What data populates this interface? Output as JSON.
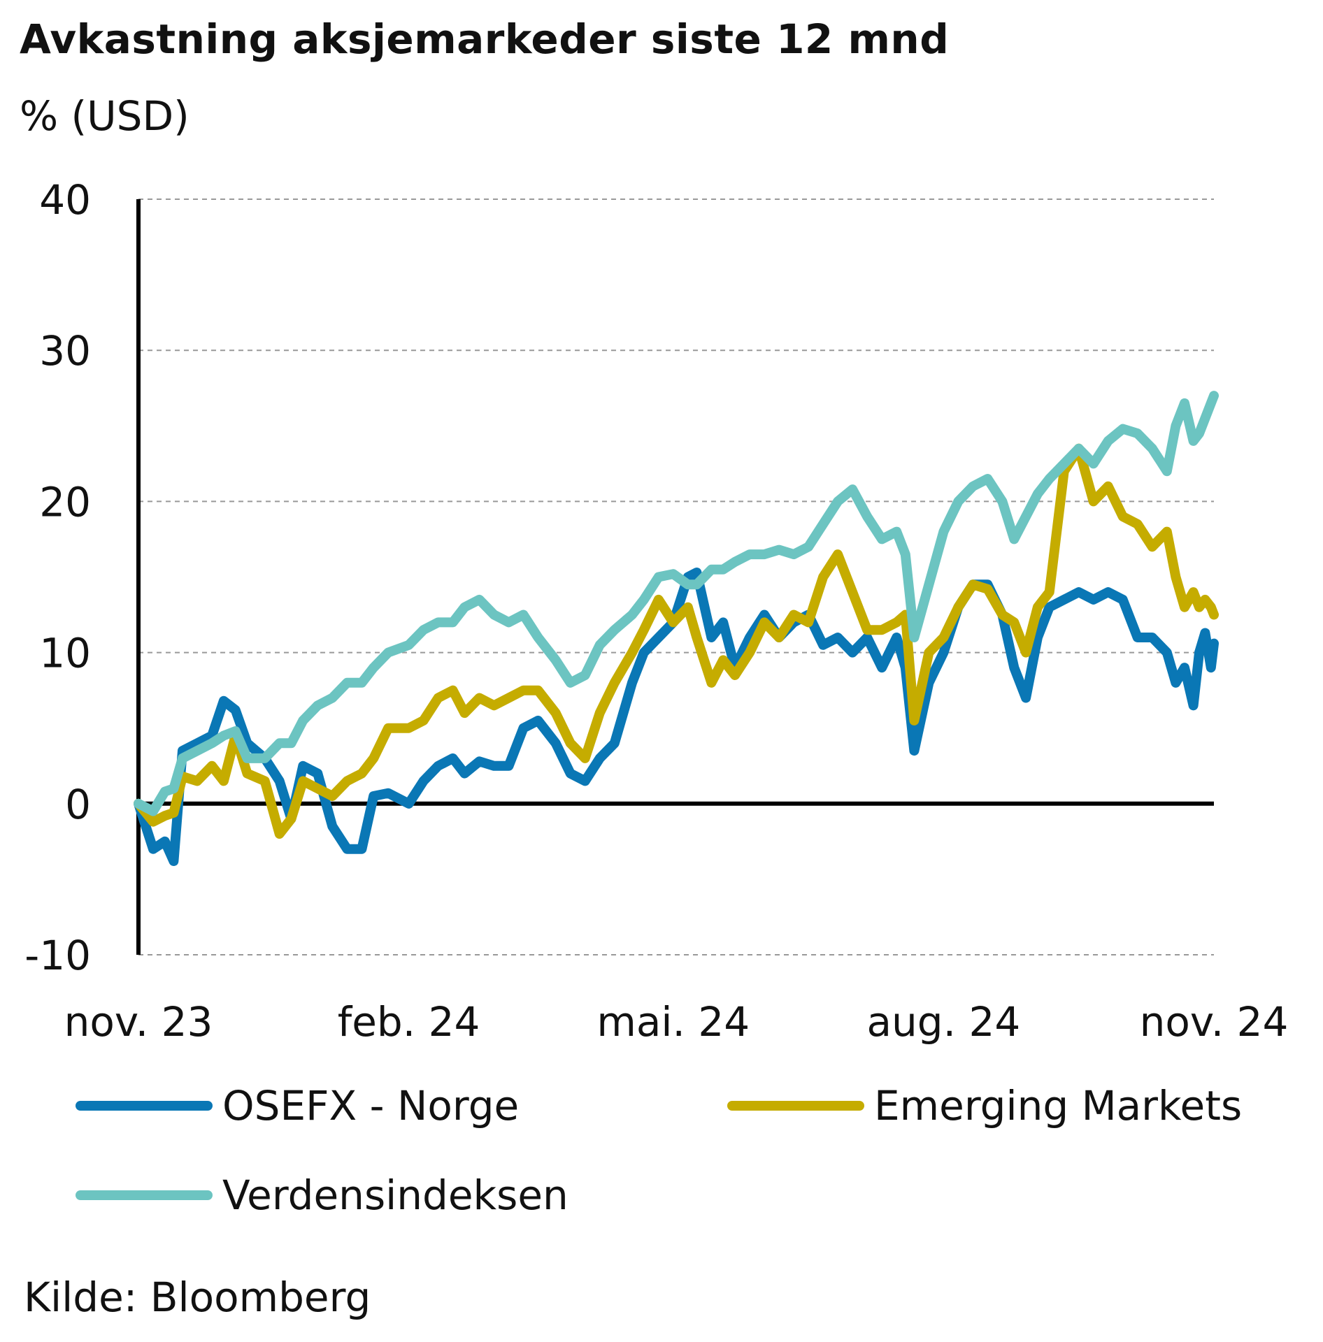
{
  "title": "Avkastning aksjemarkeder siste 12 mnd",
  "unit": "% (USD)",
  "source": "Kilde: Bloomberg",
  "colors": {
    "OSEFX": "#0a77b5",
    "EM": "#c5ac00",
    "World": "#6cc4c1",
    "axis": "#000000",
    "grid": "#999999"
  },
  "chart_data": {
    "type": "line",
    "title": "Avkastning aksjemarkeder siste 12 mnd",
    "ylabel": "% (USD)",
    "xlabel": "",
    "ylim": [
      -10,
      40
    ],
    "yticks": [
      40,
      30,
      20,
      10,
      0,
      -10
    ],
    "xlim": [
      "2023-11-15",
      "2024-11-15"
    ],
    "xticks": [
      {
        "date": "2023-11-15",
        "label": "nov. 23"
      },
      {
        "date": "2024-02-15",
        "label": "feb. 24"
      },
      {
        "date": "2024-05-15",
        "label": "mai. 24"
      },
      {
        "date": "2024-08-15",
        "label": "aug. 24"
      },
      {
        "date": "2024-11-15",
        "label": "nov. 24"
      }
    ],
    "grid": "horizontal dashed",
    "legend": "bottom",
    "series": [
      {
        "name": "OSEFX - Norge",
        "color": "#0a77b5",
        "points": [
          [
            "2023-11-15",
            0
          ],
          [
            "2023-11-20",
            -3
          ],
          [
            "2023-11-24",
            -2.5
          ],
          [
            "2023-11-27",
            -3.8
          ],
          [
            "2023-11-30",
            3.5
          ],
          [
            "2023-12-05",
            4
          ],
          [
            "2023-12-10",
            4.5
          ],
          [
            "2023-12-14",
            6.8
          ],
          [
            "2023-12-18",
            6.2
          ],
          [
            "2023-12-22",
            4
          ],
          [
            "2023-12-28",
            3
          ],
          [
            "2024-01-02",
            1.5
          ],
          [
            "2024-01-06",
            -1
          ],
          [
            "2024-01-10",
            2.5
          ],
          [
            "2024-01-15",
            2
          ],
          [
            "2024-01-20",
            -1.5
          ],
          [
            "2024-01-25",
            -3
          ],
          [
            "2024-01-30",
            -3
          ],
          [
            "2024-02-03",
            0.5
          ],
          [
            "2024-02-08",
            0.7
          ],
          [
            "2024-02-15",
            0
          ],
          [
            "2024-02-20",
            1.5
          ],
          [
            "2024-02-25",
            2.5
          ],
          [
            "2024-03-01",
            3
          ],
          [
            "2024-03-05",
            2
          ],
          [
            "2024-03-10",
            2.8
          ],
          [
            "2024-03-15",
            2.5
          ],
          [
            "2024-03-20",
            2.5
          ],
          [
            "2024-03-25",
            5
          ],
          [
            "2024-03-30",
            5.5
          ],
          [
            "2024-04-05",
            4
          ],
          [
            "2024-04-10",
            2
          ],
          [
            "2024-04-15",
            1.5
          ],
          [
            "2024-04-20",
            3
          ],
          [
            "2024-04-25",
            4
          ],
          [
            "2024-05-01",
            8
          ],
          [
            "2024-05-05",
            10
          ],
          [
            "2024-05-10",
            11
          ],
          [
            "2024-05-15",
            12
          ],
          [
            "2024-05-20",
            15
          ],
          [
            "2024-05-23",
            15.3
          ],
          [
            "2024-05-28",
            11
          ],
          [
            "2024-06-01",
            12
          ],
          [
            "2024-06-05",
            9
          ],
          [
            "2024-06-10",
            11
          ],
          [
            "2024-06-15",
            12.5
          ],
          [
            "2024-06-20",
            11
          ],
          [
            "2024-06-25",
            12
          ],
          [
            "2024-06-30",
            12.5
          ],
          [
            "2024-07-05",
            10.5
          ],
          [
            "2024-07-10",
            11
          ],
          [
            "2024-07-15",
            10
          ],
          [
            "2024-07-20",
            11
          ],
          [
            "2024-07-25",
            9
          ],
          [
            "2024-07-30",
            11
          ],
          [
            "2024-08-02",
            9
          ],
          [
            "2024-08-05",
            3.5
          ],
          [
            "2024-08-10",
            8
          ],
          [
            "2024-08-15",
            10
          ],
          [
            "2024-08-20",
            13
          ],
          [
            "2024-08-25",
            14.5
          ],
          [
            "2024-08-30",
            14.5
          ],
          [
            "2024-09-04",
            12.5
          ],
          [
            "2024-09-08",
            9
          ],
          [
            "2024-09-12",
            7
          ],
          [
            "2024-09-16",
            11
          ],
          [
            "2024-09-20",
            13
          ],
          [
            "2024-09-25",
            13.5
          ],
          [
            "2024-09-30",
            14
          ],
          [
            "2024-10-05",
            13.5
          ],
          [
            "2024-10-10",
            14
          ],
          [
            "2024-10-15",
            13.5
          ],
          [
            "2024-10-20",
            11
          ],
          [
            "2024-10-25",
            11
          ],
          [
            "2024-10-30",
            10
          ],
          [
            "2024-11-02",
            8
          ],
          [
            "2024-11-05",
            9
          ],
          [
            "2024-11-08",
            6.5
          ],
          [
            "2024-11-10",
            10
          ],
          [
            "2024-11-12",
            11.3
          ],
          [
            "2024-11-14",
            9
          ],
          [
            "2024-11-15",
            10.6
          ]
        ]
      },
      {
        "name": "Emerging Markets",
        "color": "#c5ac00",
        "points": [
          [
            "2023-11-15",
            0
          ],
          [
            "2023-11-20",
            -1.2
          ],
          [
            "2023-11-24",
            -0.8
          ],
          [
            "2023-11-27",
            -0.6
          ],
          [
            "2023-11-30",
            1.8
          ],
          [
            "2023-12-05",
            1.5
          ],
          [
            "2023-12-10",
            2.5
          ],
          [
            "2023-12-14",
            1.5
          ],
          [
            "2023-12-18",
            4.5
          ],
          [
            "2023-12-22",
            2
          ],
          [
            "2023-12-28",
            1.5
          ],
          [
            "2024-01-02",
            -2
          ],
          [
            "2024-01-06",
            -1
          ],
          [
            "2024-01-10",
            1.5
          ],
          [
            "2024-01-15",
            1
          ],
          [
            "2024-01-20",
            0.5
          ],
          [
            "2024-01-25",
            1.5
          ],
          [
            "2024-01-30",
            2
          ],
          [
            "2024-02-03",
            3
          ],
          [
            "2024-02-08",
            5
          ],
          [
            "2024-02-15",
            5
          ],
          [
            "2024-02-20",
            5.5
          ],
          [
            "2024-02-25",
            7
          ],
          [
            "2024-03-01",
            7.5
          ],
          [
            "2024-03-05",
            6
          ],
          [
            "2024-03-10",
            7
          ],
          [
            "2024-03-15",
            6.5
          ],
          [
            "2024-03-20",
            7
          ],
          [
            "2024-03-25",
            7.5
          ],
          [
            "2024-03-30",
            7.5
          ],
          [
            "2024-04-05",
            6
          ],
          [
            "2024-04-10",
            4
          ],
          [
            "2024-04-15",
            3
          ],
          [
            "2024-04-20",
            6
          ],
          [
            "2024-04-25",
            8
          ],
          [
            "2024-05-01",
            10
          ],
          [
            "2024-05-05",
            11.5
          ],
          [
            "2024-05-10",
            13.5
          ],
          [
            "2024-05-15",
            12
          ],
          [
            "2024-05-20",
            13
          ],
          [
            "2024-05-23",
            11
          ],
          [
            "2024-05-28",
            8
          ],
          [
            "2024-06-01",
            9.5
          ],
          [
            "2024-06-05",
            8.5
          ],
          [
            "2024-06-10",
            10
          ],
          [
            "2024-06-15",
            12
          ],
          [
            "2024-06-20",
            11
          ],
          [
            "2024-06-25",
            12.5
          ],
          [
            "2024-06-30",
            12
          ],
          [
            "2024-07-05",
            15
          ],
          [
            "2024-07-10",
            16.5
          ],
          [
            "2024-07-15",
            14
          ],
          [
            "2024-07-20",
            11.5
          ],
          [
            "2024-07-25",
            11.5
          ],
          [
            "2024-07-30",
            12
          ],
          [
            "2024-08-02",
            12.5
          ],
          [
            "2024-08-05",
            5.5
          ],
          [
            "2024-08-10",
            10
          ],
          [
            "2024-08-15",
            11
          ],
          [
            "2024-08-20",
            13
          ],
          [
            "2024-08-25",
            14.5
          ],
          [
            "2024-08-30",
            14.2
          ],
          [
            "2024-09-04",
            12.5
          ],
          [
            "2024-09-08",
            12
          ],
          [
            "2024-09-12",
            10
          ],
          [
            "2024-09-16",
            13
          ],
          [
            "2024-09-20",
            14
          ],
          [
            "2024-09-25",
            22
          ],
          [
            "2024-09-30",
            23.5
          ],
          [
            "2024-10-05",
            20
          ],
          [
            "2024-10-10",
            21
          ],
          [
            "2024-10-15",
            19
          ],
          [
            "2024-10-20",
            18.5
          ],
          [
            "2024-10-25",
            17
          ],
          [
            "2024-10-30",
            18
          ],
          [
            "2024-11-02",
            15
          ],
          [
            "2024-11-05",
            13
          ],
          [
            "2024-11-08",
            14
          ],
          [
            "2024-11-10",
            13
          ],
          [
            "2024-11-12",
            13.5
          ],
          [
            "2024-11-14",
            13
          ],
          [
            "2024-11-15",
            12.5
          ]
        ]
      },
      {
        "name": "Verdensindeksen",
        "color": "#6cc4c1",
        "points": [
          [
            "2023-11-15",
            0
          ],
          [
            "2023-11-20",
            -0.5
          ],
          [
            "2023-11-24",
            0.8
          ],
          [
            "2023-11-27",
            1
          ],
          [
            "2023-11-30",
            3
          ],
          [
            "2023-12-05",
            3.5
          ],
          [
            "2023-12-10",
            4
          ],
          [
            "2023-12-14",
            4.5
          ],
          [
            "2023-12-18",
            4.8
          ],
          [
            "2023-12-22",
            3
          ],
          [
            "2023-12-28",
            3
          ],
          [
            "2024-01-02",
            4
          ],
          [
            "2024-01-06",
            4
          ],
          [
            "2024-01-10",
            5.5
          ],
          [
            "2024-01-15",
            6.5
          ],
          [
            "2024-01-20",
            7
          ],
          [
            "2024-01-25",
            8
          ],
          [
            "2024-01-30",
            8
          ],
          [
            "2024-02-03",
            9
          ],
          [
            "2024-02-08",
            10
          ],
          [
            "2024-02-15",
            10.5
          ],
          [
            "2024-02-20",
            11.5
          ],
          [
            "2024-02-25",
            12
          ],
          [
            "2024-03-01",
            12
          ],
          [
            "2024-03-05",
            13
          ],
          [
            "2024-03-10",
            13.5
          ],
          [
            "2024-03-15",
            12.5
          ],
          [
            "2024-03-20",
            12
          ],
          [
            "2024-03-25",
            12.5
          ],
          [
            "2024-03-30",
            11
          ],
          [
            "2024-04-05",
            9.5
          ],
          [
            "2024-04-10",
            8
          ],
          [
            "2024-04-15",
            8.5
          ],
          [
            "2024-04-20",
            10.5
          ],
          [
            "2024-04-25",
            11.5
          ],
          [
            "2024-05-01",
            12.5
          ],
          [
            "2024-05-05",
            13.5
          ],
          [
            "2024-05-10",
            15
          ],
          [
            "2024-05-15",
            15.2
          ],
          [
            "2024-05-20",
            14.5
          ],
          [
            "2024-05-23",
            14.5
          ],
          [
            "2024-05-28",
            15.5
          ],
          [
            "2024-06-01",
            15.5
          ],
          [
            "2024-06-05",
            16
          ],
          [
            "2024-06-10",
            16.5
          ],
          [
            "2024-06-15",
            16.5
          ],
          [
            "2024-06-20",
            16.8
          ],
          [
            "2024-06-25",
            16.5
          ],
          [
            "2024-06-30",
            17
          ],
          [
            "2024-07-05",
            18.5
          ],
          [
            "2024-07-10",
            20
          ],
          [
            "2024-07-15",
            20.8
          ],
          [
            "2024-07-20",
            19
          ],
          [
            "2024-07-25",
            17.5
          ],
          [
            "2024-07-30",
            18
          ],
          [
            "2024-08-02",
            16.5
          ],
          [
            "2024-08-05",
            11
          ],
          [
            "2024-08-10",
            14.5
          ],
          [
            "2024-08-15",
            18
          ],
          [
            "2024-08-20",
            20
          ],
          [
            "2024-08-25",
            21
          ],
          [
            "2024-08-30",
            21.5
          ],
          [
            "2024-09-04",
            20
          ],
          [
            "2024-09-08",
            17.5
          ],
          [
            "2024-09-12",
            19
          ],
          [
            "2024-09-16",
            20.5
          ],
          [
            "2024-09-20",
            21.5
          ],
          [
            "2024-09-25",
            22.5
          ],
          [
            "2024-09-30",
            23.5
          ],
          [
            "2024-10-05",
            22.5
          ],
          [
            "2024-10-10",
            24
          ],
          [
            "2024-10-15",
            24.8
          ],
          [
            "2024-10-20",
            24.5
          ],
          [
            "2024-10-25",
            23.5
          ],
          [
            "2024-10-30",
            22
          ],
          [
            "2024-11-02",
            25
          ],
          [
            "2024-11-05",
            26.5
          ],
          [
            "2024-11-08",
            24
          ],
          [
            "2024-11-10",
            24.5
          ],
          [
            "2024-11-12",
            25.5
          ],
          [
            "2024-11-14",
            26.5
          ],
          [
            "2024-11-15",
            27
          ]
        ]
      }
    ]
  }
}
